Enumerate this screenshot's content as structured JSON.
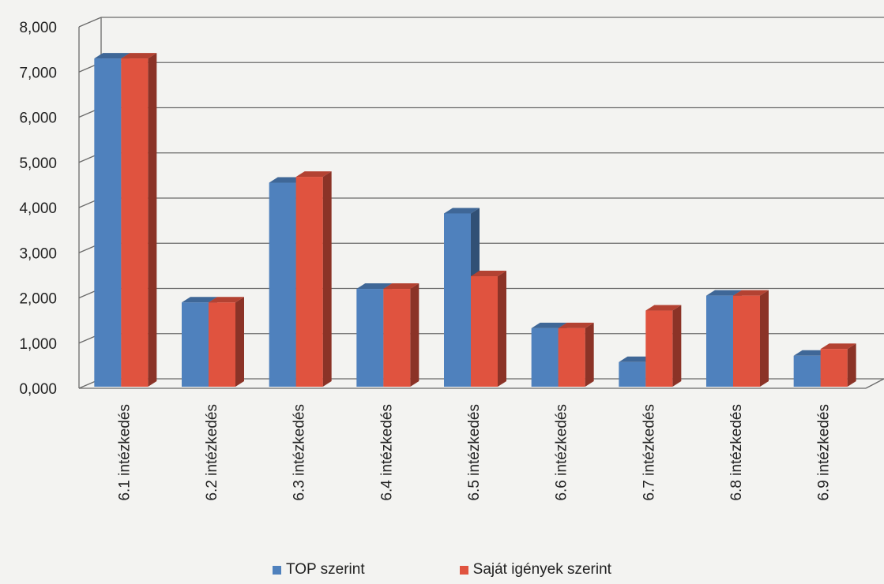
{
  "chart_data": {
    "type": "bar",
    "style": "3d-clustered-column",
    "categories": [
      "6.1 intézkedés",
      "6.2 intézkedés",
      "6.3 intézkedés",
      "6.4 intézkedés",
      "6.5 intézkedés",
      "6.6 intézkedés",
      "6.7 intézkedés",
      "6.8 intézkedés",
      "6.9 intézkedés"
    ],
    "series": [
      {
        "name": "TOP szerint",
        "color": "#4f81bd",
        "values": [
          7300,
          1900,
          4550,
          2200,
          3870,
          1330,
          580,
          2050,
          720
        ]
      },
      {
        "name": "Saját igények szerint",
        "color": "#e0533f",
        "values": [
          7300,
          1900,
          4680,
          2200,
          2480,
          1330,
          1720,
          2050,
          870
        ]
      }
    ],
    "yticks": [
      "0,000",
      "1,000",
      "2,000",
      "3,000",
      "4,000",
      "5,000",
      "6,000",
      "7,000",
      "8,000"
    ],
    "ylim": [
      0,
      8000
    ],
    "grid": true,
    "legend_position": "bottom"
  }
}
